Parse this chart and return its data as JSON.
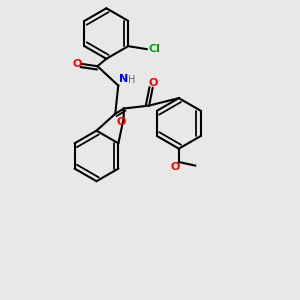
{
  "background_color": "#e8e8e8",
  "bond_color": "#000000",
  "atom_colors": {
    "O": "#ff0000",
    "N": "#0000ff",
    "Cl": "#00aa00",
    "C": "#000000",
    "H": "#666666"
  },
  "figsize": [
    3.0,
    3.0
  ],
  "dpi": 100
}
